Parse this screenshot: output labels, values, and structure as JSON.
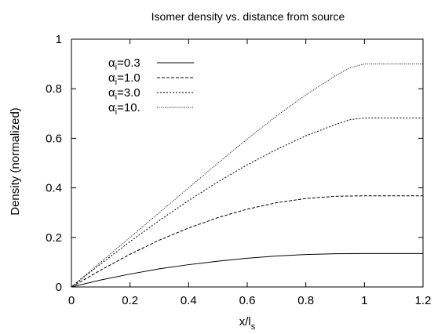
{
  "chart_data": {
    "type": "line",
    "title": "Isomer density vs. distance from source",
    "xlabel": {
      "base": "x/l",
      "sub": "s"
    },
    "ylabel": "Density (normalized)",
    "xlim": [
      0,
      1.2
    ],
    "ylim": [
      0,
      1
    ],
    "xticks": [
      "0",
      "0.2",
      "0.4",
      "0.6",
      "0.8",
      "1",
      "1.2"
    ],
    "yticks": [
      "0",
      "0.2",
      "0.4",
      "0.6",
      "0.8",
      "1"
    ],
    "grid": false,
    "legend_position": "top-left",
    "series": [
      {
        "name": "αi=0.3",
        "label": {
          "base": "α",
          "sub": "i",
          "suffix": "=0.3"
        },
        "dash": "solid",
        "x": [
          0,
          0.1,
          0.2,
          0.3,
          0.4,
          0.5,
          0.6,
          0.7,
          0.8,
          0.9,
          1.0,
          1.1,
          1.2
        ],
        "y": [
          0,
          0.028,
          0.052,
          0.073,
          0.09,
          0.104,
          0.116,
          0.125,
          0.131,
          0.134,
          0.135,
          0.135,
          0.135
        ]
      },
      {
        "name": "αi=1.0",
        "label": {
          "base": "α",
          "sub": "i",
          "suffix": "=1.0"
        },
        "dash": "dashed",
        "x": [
          0,
          0.1,
          0.2,
          0.3,
          0.4,
          0.5,
          0.6,
          0.7,
          0.8,
          0.9,
          1.0,
          1.1,
          1.2
        ],
        "y": [
          0,
          0.068,
          0.132,
          0.189,
          0.238,
          0.28,
          0.314,
          0.34,
          0.357,
          0.366,
          0.368,
          0.368,
          0.368
        ]
      },
      {
        "name": "αi=3.0",
        "label": {
          "base": "α",
          "sub": "i",
          "suffix": "=3.0"
        },
        "dash": "short-dashed",
        "x": [
          0,
          0.1,
          0.2,
          0.3,
          0.4,
          0.5,
          0.6,
          0.7,
          0.8,
          0.9,
          0.95,
          1.0,
          1.1,
          1.2
        ],
        "y": [
          0,
          0.093,
          0.183,
          0.268,
          0.349,
          0.424,
          0.493,
          0.555,
          0.61,
          0.655,
          0.675,
          0.682,
          0.682,
          0.682
        ]
      },
      {
        "name": "αi=10.",
        "label": {
          "base": "α",
          "sub": "i",
          "suffix": "=10."
        },
        "dash": "dotted",
        "x": [
          0,
          0.1,
          0.2,
          0.3,
          0.4,
          0.5,
          0.6,
          0.7,
          0.8,
          0.9,
          0.95,
          1.0,
          1.1,
          1.2
        ],
        "y": [
          0,
          0.1,
          0.2,
          0.3,
          0.4,
          0.5,
          0.597,
          0.69,
          0.775,
          0.852,
          0.885,
          0.9,
          0.9,
          0.9
        ]
      }
    ]
  }
}
